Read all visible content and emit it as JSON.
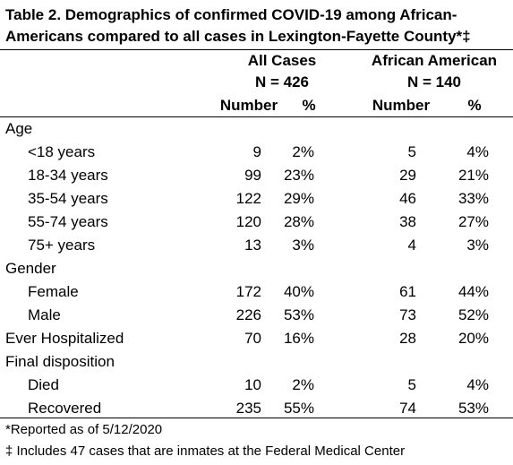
{
  "title": "Table 2. Demographics of confirmed COVID-19 among African-Americans compared to all cases in Lexington-Fayette County*‡",
  "header": {
    "group_all": "All Cases",
    "group_all_n": "N = 426",
    "group_aa": "African American",
    "group_aa_n": "N = 140",
    "col_number_all": "Number",
    "col_pct_all": "%",
    "col_number_aa": "Number",
    "col_pct_aa": "%"
  },
  "rows": [
    {
      "label": "Age",
      "indent": false,
      "all_n": "",
      "all_pct": "",
      "aa_n": "",
      "aa_pct": ""
    },
    {
      "label": "<18 years",
      "indent": true,
      "all_n": "9",
      "all_pct": "2%",
      "aa_n": "5",
      "aa_pct": "4%"
    },
    {
      "label": "18-34 years",
      "indent": true,
      "all_n": "99",
      "all_pct": "23%",
      "aa_n": "29",
      "aa_pct": "21%"
    },
    {
      "label": "35-54 years",
      "indent": true,
      "all_n": "122",
      "all_pct": "29%",
      "aa_n": "46",
      "aa_pct": "33%"
    },
    {
      "label": "55-74 years",
      "indent": true,
      "all_n": "120",
      "all_pct": "28%",
      "aa_n": "38",
      "aa_pct": "27%"
    },
    {
      "label": "75+ years",
      "indent": true,
      "all_n": "13",
      "all_pct": "3%",
      "aa_n": "4",
      "aa_pct": "3%"
    },
    {
      "label": "Gender",
      "indent": false,
      "all_n": "",
      "all_pct": "",
      "aa_n": "",
      "aa_pct": ""
    },
    {
      "label": "Female",
      "indent": true,
      "all_n": "172",
      "all_pct": "40%",
      "aa_n": "61",
      "aa_pct": "44%"
    },
    {
      "label": "Male",
      "indent": true,
      "all_n": "226",
      "all_pct": "53%",
      "aa_n": "73",
      "aa_pct": "52%"
    },
    {
      "label": "Ever Hospitalized",
      "indent": false,
      "all_n": "70",
      "all_pct": "16%",
      "aa_n": "28",
      "aa_pct": "20%"
    },
    {
      "label": "Final disposition",
      "indent": false,
      "all_n": "",
      "all_pct": "",
      "aa_n": "",
      "aa_pct": ""
    },
    {
      "label": "Died",
      "indent": true,
      "all_n": "10",
      "all_pct": "2%",
      "aa_n": "5",
      "aa_pct": "4%"
    },
    {
      "label": "Recovered",
      "indent": true,
      "all_n": "235",
      "all_pct": "55%",
      "aa_n": "74",
      "aa_pct": "53%"
    }
  ],
  "footnotes": [
    "*Reported as of 5/12/2020",
    "‡ Includes 47 cases that are inmates at the Federal Medical Center"
  ]
}
